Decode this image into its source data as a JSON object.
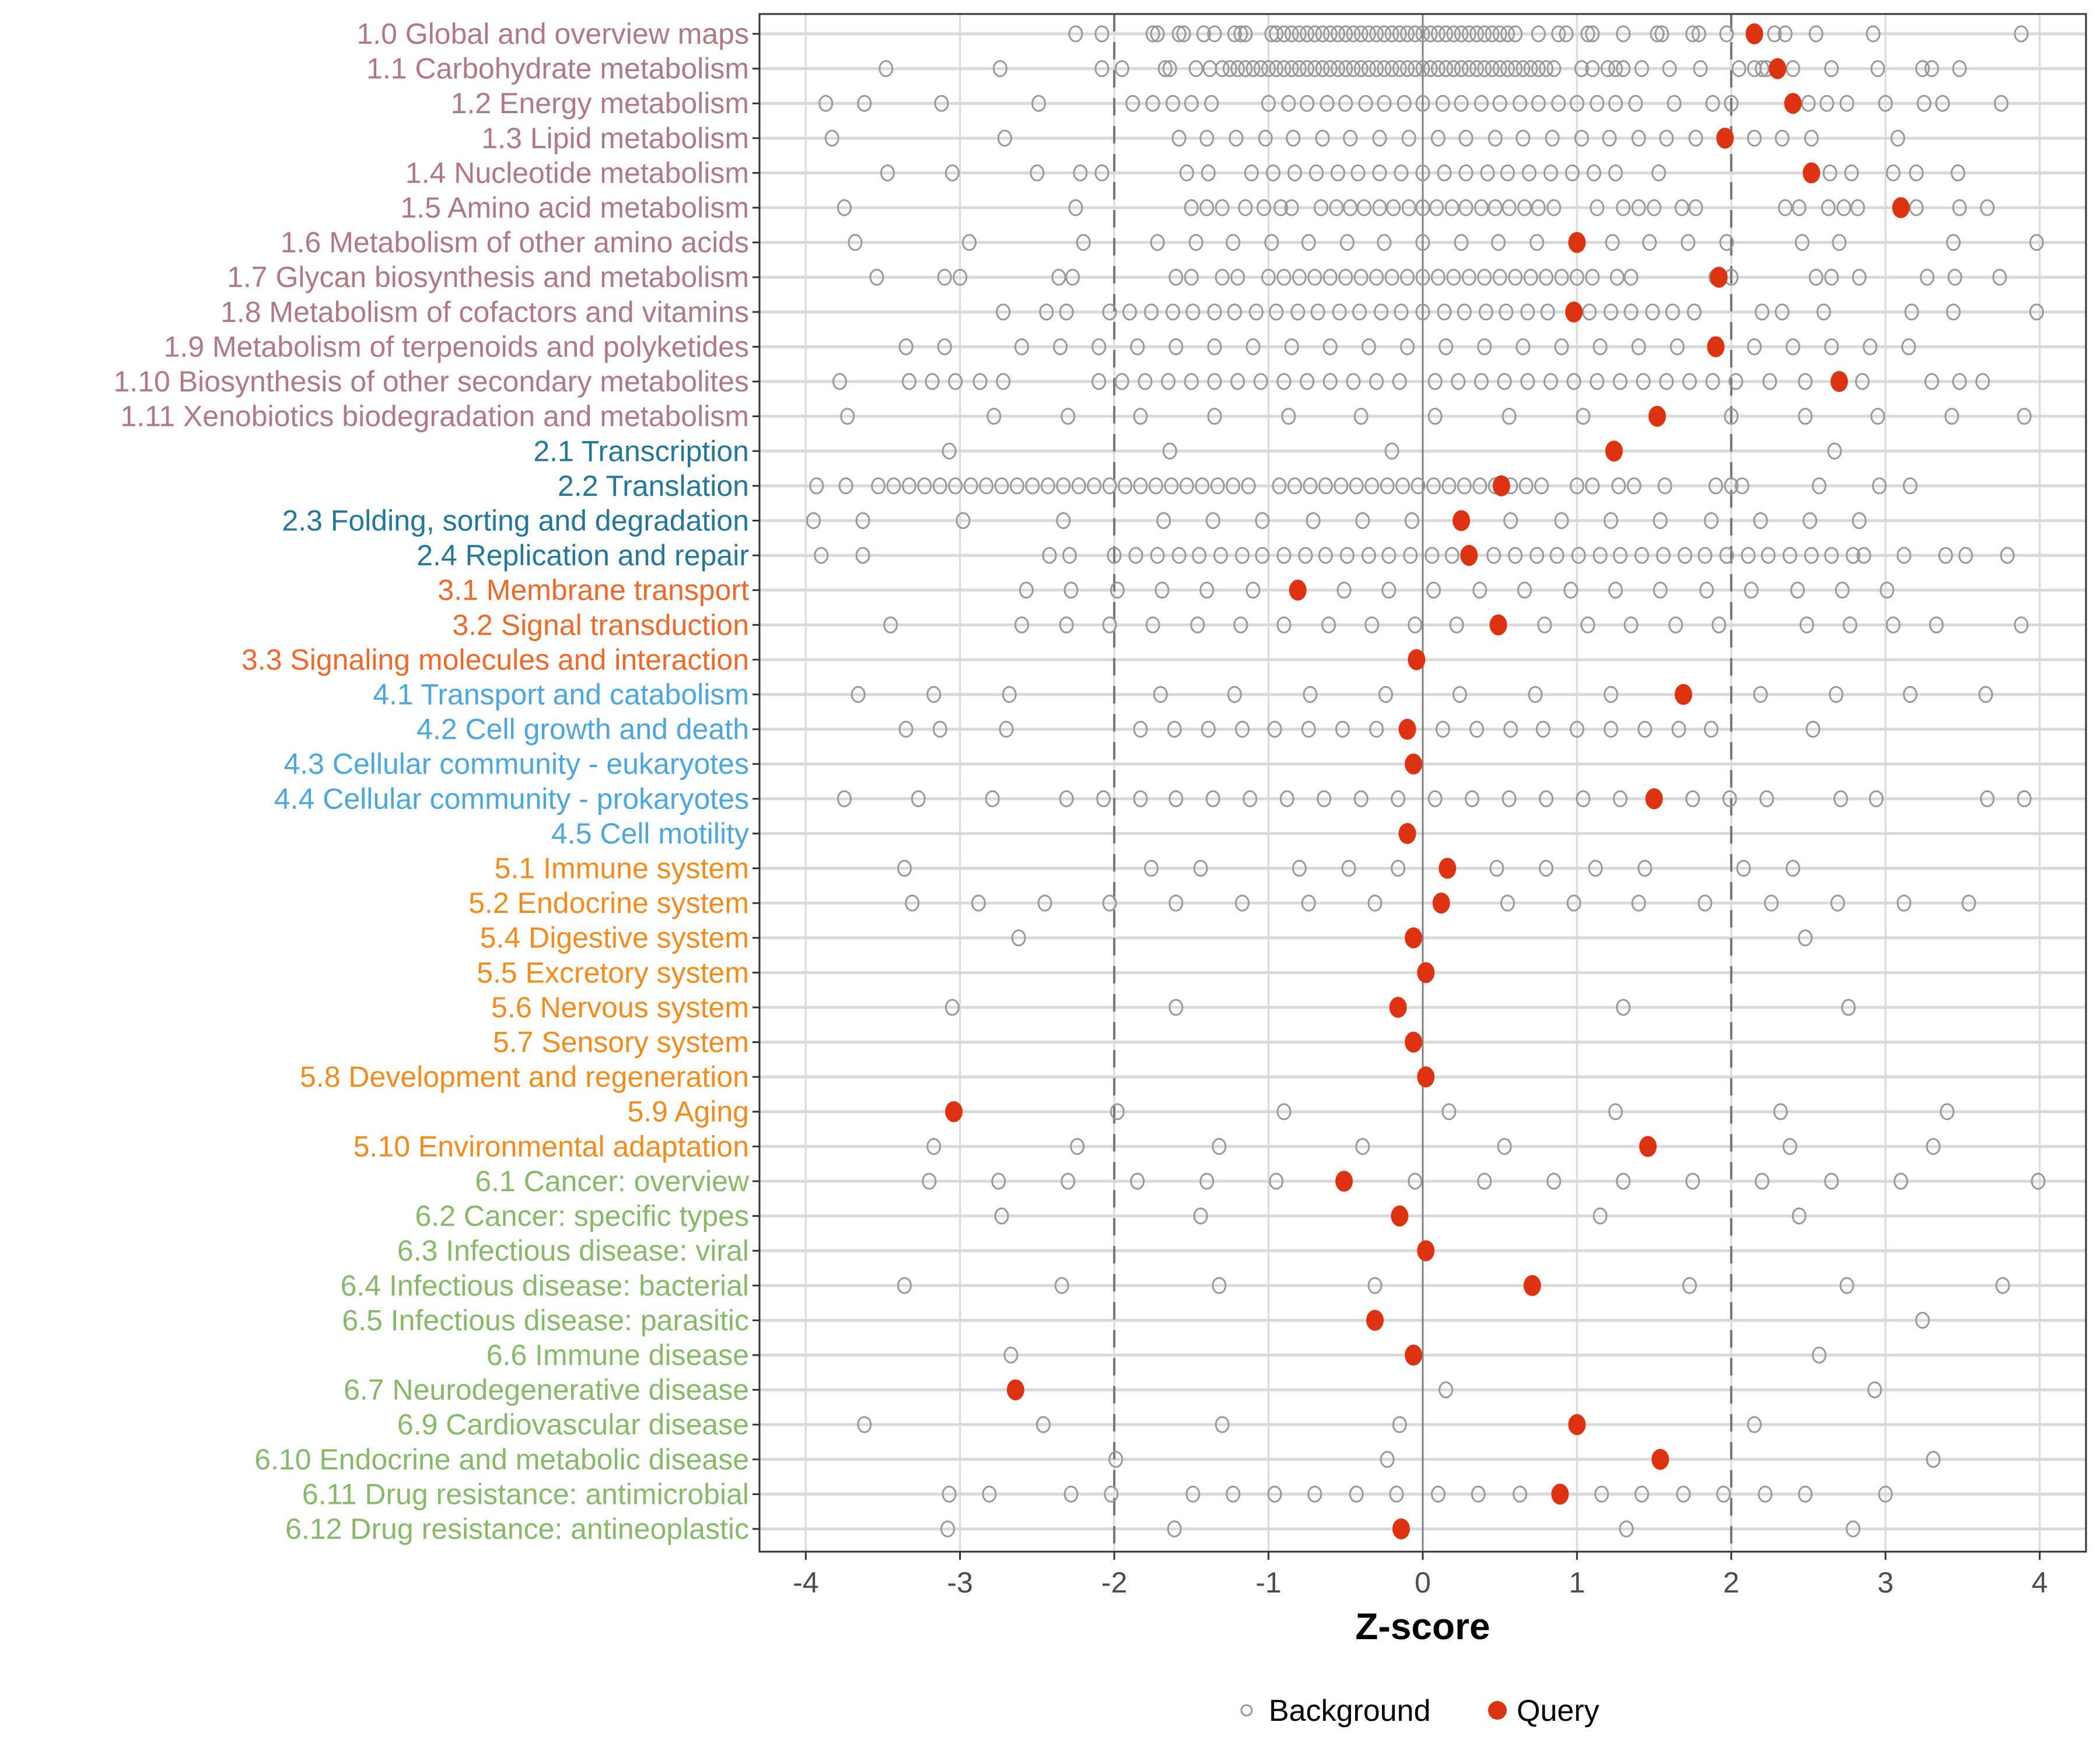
{
  "chart_data": {
    "type": "scatter",
    "title": "",
    "xlabel": "Z-score",
    "ylabel": "",
    "xlim": [
      -4.3,
      4.3
    ],
    "xticks": [
      "-4",
      "-3",
      "-2",
      "-1",
      "0",
      "1",
      "2",
      "3",
      "4"
    ],
    "xtick_values": [
      -4,
      -3,
      -2,
      -1,
      0,
      1,
      2,
      3,
      4
    ],
    "reference_lines": {
      "dashed": [
        -2,
        2
      ],
      "solid": [
        0
      ]
    },
    "grid": true,
    "legend": {
      "placement": "bottom",
      "entries": [
        {
          "name": "Background",
          "marker": "open-circle",
          "color": "#999999"
        },
        {
          "name": "Query",
          "marker": "filled-circle",
          "color": "#dd3311"
        }
      ]
    },
    "group_colors": {
      "1": "#b07a85",
      "2": "#25779a",
      "3": "#ee6a2a",
      "4": "#4da6dc",
      "5": "#f28c1e",
      "6": "#88b86a"
    },
    "categories": [
      {
        "label": "1.0 Global and overview maps",
        "group": "1",
        "query": 2.15,
        "background": [
          -2.25,
          -2.08,
          -1.75,
          -1.72,
          -1.58,
          -1.55,
          -1.42,
          -1.35,
          -1.22,
          -1.18,
          -1.15,
          -0.98,
          -0.95,
          -0.9,
          -0.85,
          -0.8,
          -0.75,
          -0.7,
          -0.65,
          -0.6,
          -0.55,
          -0.5,
          -0.45,
          -0.4,
          -0.35,
          -0.3,
          -0.25,
          -0.2,
          -0.15,
          -0.1,
          -0.05,
          0,
          0.05,
          0.1,
          0.15,
          0.2,
          0.25,
          0.3,
          0.35,
          0.4,
          0.45,
          0.5,
          0.55,
          0.6,
          0.75,
          0.88,
          0.93,
          1.07,
          1.1,
          1.3,
          1.52,
          1.55,
          1.75,
          1.79,
          1.97,
          2.28,
          2.35,
          2.55,
          2.92,
          3.88
        ]
      },
      {
        "label": "1.1 Carbohydrate metabolism",
        "group": "1",
        "query": 2.3,
        "background": [
          -3.48,
          -2.74,
          -2.08,
          -1.95,
          -1.67,
          -1.64,
          -1.47,
          -1.38,
          -1.3,
          -1.25,
          -1.2,
          -1.15,
          -1.1,
          -1.05,
          -1.0,
          -0.95,
          -0.9,
          -0.85,
          -0.8,
          -0.75,
          -0.7,
          -0.65,
          -0.6,
          -0.55,
          -0.5,
          -0.45,
          -0.4,
          -0.35,
          -0.3,
          -0.25,
          -0.2,
          -0.15,
          -0.1,
          -0.05,
          0,
          0.05,
          0.1,
          0.15,
          0.2,
          0.25,
          0.3,
          0.35,
          0.4,
          0.45,
          0.5,
          0.55,
          0.6,
          0.65,
          0.7,
          0.75,
          0.8,
          0.85,
          1.03,
          1.1,
          1.2,
          1.25,
          1.3,
          1.42,
          1.6,
          1.8,
          2.05,
          2.15,
          2.2,
          2.23,
          2.4,
          2.65,
          2.95,
          3.24,
          3.3,
          3.48
        ]
      },
      {
        "label": "1.2 Energy metabolism",
        "group": "1",
        "query": 2.4,
        "background": [
          -3.87,
          -3.62,
          -3.12,
          -2.49,
          -1.88,
          -1.75,
          -1.62,
          -1.5,
          -1.37,
          -1.0,
          -0.87,
          -0.75,
          -0.62,
          -0.5,
          -0.37,
          -0.25,
          -0.12,
          0,
          0.13,
          0.25,
          0.38,
          0.5,
          0.63,
          0.75,
          0.88,
          1.0,
          1.13,
          1.25,
          1.38,
          1.63,
          1.88,
          2.0,
          2.5,
          2.62,
          2.75,
          3.0,
          3.25,
          3.37,
          3.75
        ]
      },
      {
        "label": "1.3 Lipid metabolism",
        "group": "1",
        "query": 1.96,
        "background": [
          -3.83,
          -2.71,
          -1.58,
          -1.4,
          -1.21,
          -1.02,
          -0.84,
          -0.65,
          -0.47,
          -0.28,
          -0.09,
          0.1,
          0.28,
          0.47,
          0.65,
          0.84,
          1.03,
          1.21,
          1.4,
          1.58,
          1.77,
          2.15,
          2.33,
          2.52,
          3.08
        ]
      },
      {
        "label": "1.4 Nucleotide metabolism",
        "group": "1",
        "query": 2.52,
        "background": [
          -3.47,
          -3.05,
          -2.5,
          -2.22,
          -2.08,
          -1.53,
          -1.39,
          -1.11,
          -0.97,
          -0.83,
          -0.69,
          -0.55,
          -0.42,
          -0.28,
          -0.14,
          0,
          0.14,
          0.28,
          0.42,
          0.55,
          0.69,
          0.83,
          0.97,
          1.11,
          1.25,
          1.53,
          2.64,
          2.78,
          3.05,
          3.2,
          3.47
        ]
      },
      {
        "label": "1.5 Amino acid metabolism",
        "group": "1",
        "query": 3.1,
        "background": [
          -3.75,
          -2.25,
          -1.5,
          -1.4,
          -1.3,
          -1.15,
          -1.03,
          -0.92,
          -0.85,
          -0.66,
          -0.56,
          -0.47,
          -0.38,
          -0.28,
          -0.19,
          -0.09,
          0,
          0.09,
          0.19,
          0.28,
          0.38,
          0.47,
          0.56,
          0.66,
          0.75,
          0.85,
          1.13,
          1.3,
          1.4,
          1.5,
          1.68,
          1.77,
          2.35,
          2.44,
          2.63,
          2.73,
          2.82,
          3.2,
          3.48,
          3.66
        ]
      },
      {
        "label": "1.6 Metabolism of other amino acids",
        "group": "1",
        "query": 1.0,
        "background": [
          -3.68,
          -2.94,
          -2.2,
          -1.72,
          -1.47,
          -1.23,
          -0.98,
          -0.74,
          -0.49,
          -0.25,
          0,
          0.25,
          0.49,
          0.74,
          1.23,
          1.47,
          1.72,
          1.97,
          2.46,
          2.7,
          3.44,
          3.98
        ]
      },
      {
        "label": "1.7 Glycan biosynthesis and metabolism",
        "group": "1",
        "query": 1.92,
        "background": [
          -3.54,
          -3.1,
          -3.0,
          -2.36,
          -2.27,
          -1.6,
          -1.5,
          -1.3,
          -1.2,
          -1.0,
          -0.9,
          -0.8,
          -0.7,
          -0.6,
          -0.5,
          -0.4,
          -0.3,
          -0.2,
          -0.1,
          0,
          0.1,
          0.2,
          0.3,
          0.4,
          0.5,
          0.6,
          0.7,
          0.8,
          0.9,
          1.0,
          1.1,
          1.26,
          1.35,
          1.9,
          2.0,
          2.55,
          2.65,
          2.83,
          3.27,
          3.45,
          3.74
        ]
      },
      {
        "label": "1.8 Metabolism of cofactors and vitamins",
        "group": "1",
        "query": 0.98,
        "background": [
          -2.72,
          -2.44,
          -2.31,
          -2.03,
          -1.9,
          -1.76,
          -1.62,
          -1.49,
          -1.35,
          -1.22,
          -1.08,
          -0.95,
          -0.81,
          -0.68,
          -0.54,
          -0.41,
          -0.27,
          -0.14,
          0,
          0.14,
          0.27,
          0.41,
          0.54,
          0.68,
          0.81,
          1.08,
          1.22,
          1.35,
          1.49,
          1.62,
          1.76,
          2.2,
          2.33,
          2.6,
          3.17,
          3.44,
          3.98
        ]
      },
      {
        "label": "1.9 Metabolism of terpenoids and polyketides",
        "group": "1",
        "query": 1.9,
        "background": [
          -3.35,
          -3.1,
          -2.6,
          -2.35,
          -2.1,
          -1.85,
          -1.6,
          -1.35,
          -1.1,
          -0.85,
          -0.6,
          -0.35,
          -0.1,
          0.15,
          0.4,
          0.65,
          0.9,
          1.15,
          1.4,
          1.65,
          2.15,
          2.4,
          2.65,
          2.9,
          3.15
        ]
      },
      {
        "label": "1.10 Biosynthesis of other secondary metabolites",
        "group": "1",
        "query": 2.7,
        "background": [
          -3.78,
          -3.33,
          -3.18,
          -3.03,
          -2.87,
          -2.72,
          -2.1,
          -1.95,
          -1.8,
          -1.65,
          -1.5,
          -1.35,
          -1.2,
          -1.05,
          -0.9,
          -0.75,
          -0.6,
          -0.45,
          -0.3,
          -0.15,
          0.08,
          0.23,
          0.38,
          0.53,
          0.68,
          0.83,
          0.98,
          1.13,
          1.28,
          1.43,
          1.58,
          1.73,
          1.88,
          2.03,
          2.25,
          2.48,
          2.85,
          3.3,
          3.48,
          3.63
        ]
      },
      {
        "label": "1.11 Xenobiotics biodegradation and metabolism",
        "group": "1",
        "query": 1.52,
        "background": [
          -3.73,
          -2.78,
          -2.3,
          -1.83,
          -1.35,
          -0.87,
          -0.4,
          0.08,
          0.56,
          1.04,
          2.0,
          2.48,
          2.95,
          3.43,
          3.9
        ]
      },
      {
        "label": "2.1 Transcription",
        "group": "2",
        "query": 1.24,
        "background": [
          -3.07,
          -1.64,
          -0.2,
          2.67
        ]
      },
      {
        "label": "2.2 Translation",
        "group": "2",
        "query": 0.51,
        "background": [
          -3.93,
          -3.74,
          -3.53,
          -3.43,
          -3.33,
          -3.23,
          -3.13,
          -3.03,
          -2.93,
          -2.83,
          -2.73,
          -2.63,
          -2.53,
          -2.43,
          -2.33,
          -2.23,
          -2.13,
          -2.03,
          -1.93,
          -1.83,
          -1.73,
          -1.63,
          -1.53,
          -1.43,
          -1.33,
          -1.23,
          -1.13,
          -0.93,
          -0.83,
          -0.73,
          -0.63,
          -0.53,
          -0.43,
          -0.33,
          -0.23,
          -0.13,
          -0.03,
          0.07,
          0.17,
          0.27,
          0.37,
          0.47,
          0.57,
          0.67,
          0.77,
          1.0,
          1.1,
          1.27,
          1.37,
          1.57,
          1.9,
          2.0,
          2.07,
          2.57,
          2.96,
          3.16
        ]
      },
      {
        "label": "2.3 Folding, sorting and degradation",
        "group": "2",
        "query": 0.25,
        "background": [
          -3.95,
          -3.63,
          -2.98,
          -2.33,
          -1.68,
          -1.36,
          -1.04,
          -0.71,
          -0.39,
          -0.07,
          0.57,
          0.9,
          1.22,
          1.54,
          1.87,
          2.19,
          2.51,
          2.83
        ]
      },
      {
        "label": "2.4 Replication and repair",
        "group": "2",
        "query": 0.3,
        "background": [
          -3.9,
          -3.63,
          -2.42,
          -2.29,
          -2.0,
          -1.86,
          -1.72,
          -1.58,
          -1.45,
          -1.31,
          -1.17,
          -1.04,
          -0.9,
          -0.76,
          -0.63,
          -0.49,
          -0.35,
          -0.22,
          -0.08,
          0.06,
          0.19,
          0.46,
          0.6,
          0.74,
          0.87,
          1.01,
          1.15,
          1.28,
          1.42,
          1.56,
          1.7,
          1.83,
          1.97,
          2.11,
          2.24,
          2.38,
          2.52,
          2.65,
          2.79,
          2.86,
          3.12,
          3.39,
          3.52,
          3.79
        ]
      },
      {
        "label": "3.1 Membrane transport",
        "group": "3",
        "query": -0.81,
        "background": [
          -2.57,
          -2.28,
          -1.98,
          -1.69,
          -1.4,
          -1.1,
          -0.51,
          -0.22,
          0.07,
          0.37,
          0.66,
          0.96,
          1.25,
          1.54,
          1.84,
          2.13,
          2.43,
          2.72,
          3.01
        ]
      },
      {
        "label": "3.2 Signal transduction",
        "group": "3",
        "query": 0.49,
        "background": [
          -3.45,
          -2.6,
          -2.31,
          -2.03,
          -1.75,
          -1.46,
          -1.18,
          -0.9,
          -0.61,
          -0.33,
          -0.05,
          0.22,
          0.79,
          1.07,
          1.35,
          1.64,
          1.92,
          2.49,
          2.77,
          3.05,
          3.33,
          3.88
        ]
      },
      {
        "label": "3.3 Signaling molecules and interaction",
        "group": "3",
        "query": -0.04,
        "background": []
      },
      {
        "label": "4.1 Transport and catabolism",
        "group": "4",
        "query": 1.69,
        "background": [
          -3.66,
          -3.17,
          -2.68,
          -1.7,
          -1.22,
          -0.73,
          -0.24,
          0.24,
          0.73,
          1.22,
          2.19,
          2.68,
          3.16,
          3.65
        ]
      },
      {
        "label": "4.2 Cell growth and death",
        "group": "4",
        "query": -0.1,
        "background": [
          -3.35,
          -3.13,
          -2.7,
          -1.83,
          -1.61,
          -1.39,
          -1.17,
          -0.96,
          -0.74,
          -0.52,
          -0.3,
          0.13,
          0.35,
          0.57,
          0.78,
          1.0,
          1.22,
          1.44,
          1.66,
          1.87,
          2.53
        ]
      },
      {
        "label": "4.3 Cellular community - eukaryotes",
        "group": "4",
        "query": -0.06,
        "background": []
      },
      {
        "label": "4.4 Cellular community - prokaryotes",
        "group": "4",
        "query": 1.5,
        "background": [
          -3.75,
          -3.27,
          -2.79,
          -2.31,
          -2.07,
          -1.83,
          -1.6,
          -1.36,
          -1.12,
          -0.88,
          -0.64,
          -0.4,
          -0.16,
          0.08,
          0.32,
          0.56,
          0.8,
          1.04,
          1.28,
          1.75,
          1.99,
          2.23,
          2.71,
          2.94,
          3.66,
          3.9
        ]
      },
      {
        "label": "4.5 Cell motility",
        "group": "4",
        "query": -0.1,
        "background": []
      },
      {
        "label": "5.1 Immune system",
        "group": "5",
        "query": 0.16,
        "background": [
          -3.36,
          -1.76,
          -1.44,
          -0.8,
          -0.48,
          -0.16,
          0.48,
          0.8,
          1.12,
          1.44,
          2.08,
          2.4
        ]
      },
      {
        "label": "5.2 Endocrine system",
        "group": "5",
        "query": 0.12,
        "background": [
          -3.31,
          -2.88,
          -2.45,
          -2.03,
          -1.6,
          -1.17,
          -0.74,
          -0.31,
          0.55,
          0.98,
          1.4,
          1.83,
          2.26,
          2.69,
          3.12,
          3.54
        ]
      },
      {
        "label": "5.4 Digestive system",
        "group": "5",
        "query": -0.06,
        "background": [
          -2.62,
          2.48
        ]
      },
      {
        "label": "5.5 Excretory system",
        "group": "5",
        "query": 0.02,
        "background": []
      },
      {
        "label": "5.6 Nervous system",
        "group": "5",
        "query": -0.16,
        "background": [
          -3.05,
          -1.6,
          1.3,
          2.76
        ]
      },
      {
        "label": "5.7 Sensory system",
        "group": "5",
        "query": -0.06,
        "background": []
      },
      {
        "label": "5.8 Development and regeneration",
        "group": "5",
        "query": 0.02,
        "background": []
      },
      {
        "label": "5.9 Aging",
        "group": "5",
        "query": -3.04,
        "background": [
          -1.98,
          -0.9,
          0.17,
          1.25,
          2.32,
          3.4
        ]
      },
      {
        "label": "5.10 Environmental adaptation",
        "group": "5",
        "query": 1.46,
        "background": [
          -3.17,
          -2.24,
          -1.32,
          -0.39,
          0.53,
          2.38,
          3.31
        ]
      },
      {
        "label": "6.1 Cancer: overview",
        "group": "6",
        "query": -0.51,
        "background": [
          -3.2,
          -2.75,
          -2.3,
          -1.85,
          -1.4,
          -0.95,
          -0.05,
          0.4,
          0.85,
          1.3,
          1.75,
          2.2,
          2.65,
          3.1,
          3.99
        ]
      },
      {
        "label": "6.2 Cancer: specific types",
        "group": "6",
        "query": -0.15,
        "background": [
          -2.73,
          -1.44,
          1.15,
          2.44
        ]
      },
      {
        "label": "6.3 Infectious disease: viral",
        "group": "6",
        "query": 0.02,
        "background": []
      },
      {
        "label": "6.4 Infectious disease: bacterial",
        "group": "6",
        "query": 0.71,
        "background": [
          -3.36,
          -2.34,
          -1.32,
          -0.31,
          1.73,
          2.75,
          3.76
        ]
      },
      {
        "label": "6.5 Infectious disease: parasitic",
        "group": "6",
        "query": -0.31,
        "background": [
          3.24
        ]
      },
      {
        "label": "6.6 Immune disease",
        "group": "6",
        "query": -0.06,
        "background": [
          -2.67,
          2.57
        ]
      },
      {
        "label": "6.7 Neurodegenerative disease",
        "group": "6",
        "query": -2.64,
        "background": [
          0.15,
          2.93
        ]
      },
      {
        "label": "6.9 Cardiovascular disease",
        "group": "6",
        "query": 1.0,
        "background": [
          -3.62,
          -2.46,
          -1.3,
          -0.15,
          2.15
        ]
      },
      {
        "label": "6.10 Endocrine and metabolic disease",
        "group": "6",
        "query": 1.54,
        "background": [
          -1.99,
          -0.23,
          3.31
        ]
      },
      {
        "label": "6.11 Drug resistance: antimicrobial",
        "group": "6",
        "query": 0.89,
        "background": [
          -3.07,
          -2.81,
          -2.28,
          -2.02,
          -1.49,
          -1.23,
          -0.96,
          -0.7,
          -0.43,
          -0.17,
          0.1,
          0.36,
          0.63,
          1.16,
          1.42,
          1.69,
          1.95,
          2.22,
          2.48,
          3.0
        ]
      },
      {
        "label": "6.12 Drug resistance: antineoplastic",
        "group": "6",
        "query": -0.14,
        "background": [
          -3.08,
          -1.61,
          1.32,
          2.79
        ]
      }
    ]
  }
}
